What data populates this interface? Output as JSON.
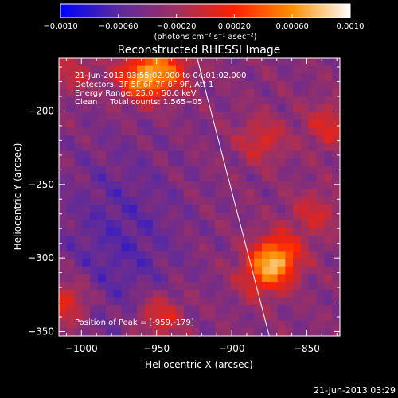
{
  "chart_data": {
    "type": "heatmap",
    "title": "Reconstructed RHESSI Image",
    "xlabel": "Heliocentric X (arcsec)",
    "ylabel": "Heliocentric Y (arcsec)",
    "xlim": [
      -1015,
      -828
    ],
    "ylim": [
      -353,
      -164
    ],
    "x_ticks": [
      -1000,
      -950,
      -900,
      -850
    ],
    "x_tick_labels": [
      "−1000",
      "−950",
      "−900",
      "−850"
    ],
    "y_ticks": [
      -200,
      -250,
      -300,
      -350
    ],
    "y_tick_labels": [
      "−200",
      "−250",
      "−300",
      "−350"
    ],
    "colorbar": {
      "range": [
        -0.001,
        0.001
      ],
      "ticks": [
        -0.001,
        -0.0006,
        -0.0002,
        0.0002,
        0.0006,
        0.001
      ],
      "tick_labels": [
        "−0.0010",
        "−0.00060",
        "−0.00020",
        "0.00020",
        "0.00060",
        "0.0010"
      ],
      "unit_label": "(photons cm⁻² s⁻¹ asec⁻²)",
      "colors": [
        "#0000ff",
        "#5a2aa0",
        "#a03060",
        "#ff2000",
        "#ff9000",
        "#ffffff"
      ]
    },
    "annotations": [
      "21-Jun-2013 03:55:02.000 to 04:01:02.000",
      "Detectors: 3F 5F 6F 7F 8F 9F, Att 1",
      "Energy Range: 25.0 - 50.0 keV",
      "Clean     Total counts: 1.565+05"
    ],
    "peak_label": "Position of Peak = [-959,-179]",
    "limb_line": [
      [
        -923,
        -164
      ],
      [
        -875,
        -353
      ]
    ],
    "sources": [
      {
        "x": -960,
        "y": -178,
        "value": 0.0009
      },
      {
        "x": -942,
        "y": -172,
        "value": 0.0006
      },
      {
        "x": -870,
        "y": -300,
        "value": 0.0009
      },
      {
        "x": -880,
        "y": -312,
        "value": 0.0005
      },
      {
        "x": -880,
        "y": -220,
        "value": 0.0004
      },
      {
        "x": -835,
        "y": -210,
        "value": 0.0004
      },
      {
        "x": -845,
        "y": -270,
        "value": 0.00035
      },
      {
        "x": -1010,
        "y": -330,
        "value": 0.0005
      },
      {
        "x": -948,
        "y": -340,
        "value": 0.0005
      },
      {
        "x": -1005,
        "y": -173,
        "value": 0.0003
      }
    ],
    "negative_region": {
      "x": -975,
      "y": -290,
      "value": -0.0006
    }
  },
  "footer": {
    "timestamp": "21-Jun-2013 03:29"
  }
}
